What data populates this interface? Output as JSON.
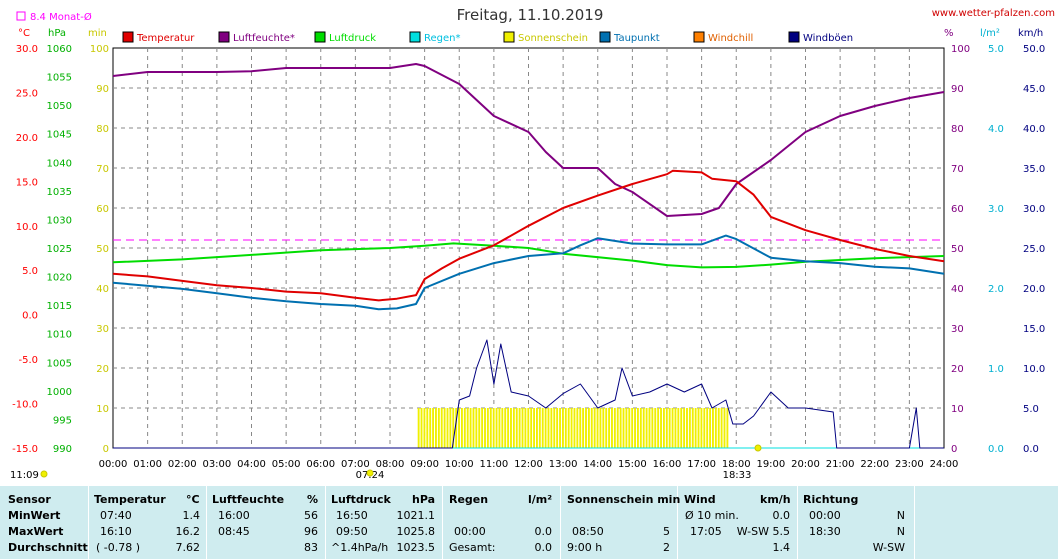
{
  "title": "Freitag, 11.10.2019",
  "site": "www.wetter-pfalzen.com",
  "monat_label": "8.4 Monat-Ø",
  "unit_labels": {
    "celsius": "°C",
    "hpa": "hPa",
    "min": "min",
    "percent": "%",
    "lm2": "l/m²",
    "kmh": "km/h"
  },
  "legend": [
    {
      "label": "Temperatur",
      "color": "#e00000"
    },
    {
      "label": "Luftfeuchte*",
      "color": "#800080"
    },
    {
      "label": "Luftdruck",
      "color": "#00dd00"
    },
    {
      "label": "Regen*",
      "color": "#00e0e0"
    },
    {
      "label": "Sonnenschein",
      "color": "#f0f000"
    },
    {
      "label": "Taupunkt",
      "color": "#0070b0"
    },
    {
      "label": "Windchill",
      "color": "#ff8000"
    },
    {
      "label": "Windböen",
      "color": "#000080"
    }
  ],
  "sunrise_label": "07:24",
  "sunset_label": "18:33",
  "time_stamp": "11:09",
  "chart_data": {
    "type": "line",
    "title": "Freitag, 11.10.2019",
    "x_ticks": [
      "00:00",
      "01:00",
      "02:00",
      "03:00",
      "04:00",
      "05:00",
      "06:00",
      "07:00",
      "08:00",
      "09:00",
      "10:00",
      "11:00",
      "12:00",
      "13:00",
      "14:00",
      "15:00",
      "16:00",
      "17:00",
      "18:00",
      "19:00",
      "20:00",
      "21:00",
      "22:00",
      "23:00",
      "24:00"
    ],
    "x_range_hours": [
      0,
      24
    ],
    "axes": {
      "temperature_c": {
        "range": [
          -15,
          30
        ],
        "ticks": [
          "30.0",
          "25.0",
          "20.0",
          "15.0",
          "10.0",
          "5.0",
          "0.0",
          "-5.0",
          "-10.0",
          "-15.0"
        ]
      },
      "pressure_hpa": {
        "range": [
          990,
          1060
        ],
        "ticks": [
          "1060",
          "1055",
          "1050",
          "1045",
          "1040",
          "1035",
          "1030",
          "1025",
          "1020",
          "1015",
          "1010",
          "1005",
          "1000",
          "995",
          "990"
        ]
      },
      "sunshine_min": {
        "range": [
          0,
          100
        ],
        "ticks": [
          "100",
          "90",
          "80",
          "70",
          "60",
          "50",
          "40",
          "30",
          "20",
          "10",
          "0"
        ]
      },
      "humidity_percent": {
        "range": [
          0,
          100
        ],
        "ticks": [
          "100",
          "90",
          "80",
          "70",
          "60",
          "50",
          "40",
          "30",
          "20",
          "10",
          "0"
        ]
      },
      "rain_lm2": {
        "range": [
          0,
          5
        ],
        "ticks": [
          "5.0",
          "4.0",
          "3.0",
          "2.0",
          "1.0",
          "0.0"
        ]
      },
      "wind_kmh": {
        "range": [
          0,
          50
        ],
        "ticks": [
          "50.0",
          "45.0",
          "40.0",
          "35.0",
          "30.0",
          "25.0",
          "20.0",
          "15.0",
          "10.0",
          "5.0",
          "0.0"
        ]
      }
    },
    "monthly_avg_temp": 8.4,
    "grid": true,
    "series": [
      {
        "name": "Temperatur",
        "axis": "temperature_c",
        "color": "#e00000",
        "points": [
          [
            0,
            4.6
          ],
          [
            1,
            4.3
          ],
          [
            2,
            3.8
          ],
          [
            3,
            3.3
          ],
          [
            4,
            3.0
          ],
          [
            5,
            2.6
          ],
          [
            6,
            2.4
          ],
          [
            7,
            1.9
          ],
          [
            7.67,
            1.6
          ],
          [
            8.2,
            1.8
          ],
          [
            8.75,
            2.2
          ],
          [
            9,
            4.0
          ],
          [
            9.5,
            5.2
          ],
          [
            10,
            6.3
          ],
          [
            11,
            7.8
          ],
          [
            12,
            10.0
          ],
          [
            13,
            12.0
          ],
          [
            14,
            13.4
          ],
          [
            15,
            14.7
          ],
          [
            16,
            15.8
          ],
          [
            16.17,
            16.2
          ],
          [
            17,
            16.0
          ],
          [
            17.3,
            15.3
          ],
          [
            18,
            15.0
          ],
          [
            18.5,
            13.5
          ],
          [
            19,
            11.0
          ],
          [
            20,
            9.5
          ],
          [
            21,
            8.4
          ],
          [
            22,
            7.4
          ],
          [
            23,
            6.6
          ],
          [
            24,
            6.0
          ]
        ]
      },
      {
        "name": "Luftfeuchte*",
        "axis": "humidity_percent",
        "color": "#800080",
        "points": [
          [
            0,
            93
          ],
          [
            1,
            94
          ],
          [
            2,
            94
          ],
          [
            3,
            94
          ],
          [
            4,
            94.2
          ],
          [
            5,
            95
          ],
          [
            6,
            95
          ],
          [
            7,
            95
          ],
          [
            8,
            95
          ],
          [
            8.75,
            96
          ],
          [
            9,
            95.5
          ],
          [
            10,
            91
          ],
          [
            11,
            83
          ],
          [
            12,
            79
          ],
          [
            12.5,
            74
          ],
          [
            13,
            70
          ],
          [
            14,
            70
          ],
          [
            14.5,
            66
          ],
          [
            15,
            64
          ],
          [
            16,
            58
          ],
          [
            17,
            58.5
          ],
          [
            17.5,
            60
          ],
          [
            18,
            66
          ],
          [
            19,
            72
          ],
          [
            20,
            79
          ],
          [
            21,
            83
          ],
          [
            22,
            85.5
          ],
          [
            23,
            87.5
          ],
          [
            24,
            89
          ]
        ]
      },
      {
        "name": "Luftdruck",
        "axis": "pressure_hpa",
        "color": "#00dd00",
        "points": [
          [
            0,
            1022.5
          ],
          [
            2,
            1023
          ],
          [
            4,
            1023.8
          ],
          [
            6,
            1024.6
          ],
          [
            8,
            1025.0
          ],
          [
            9,
            1025.4
          ],
          [
            9.83,
            1025.8
          ],
          [
            11,
            1025.4
          ],
          [
            12,
            1025
          ],
          [
            13,
            1024
          ],
          [
            15,
            1022.8
          ],
          [
            16,
            1022
          ],
          [
            17,
            1021.6
          ],
          [
            18,
            1021.7
          ],
          [
            19,
            1022.1
          ],
          [
            20,
            1022.6
          ],
          [
            21,
            1022.9
          ],
          [
            22,
            1023.2
          ],
          [
            23,
            1023.4
          ],
          [
            24,
            1023.6
          ]
        ]
      },
      {
        "name": "Taupunkt",
        "axis": "temperature_c",
        "color": "#0070b0",
        "points": [
          [
            0,
            3.6
          ],
          [
            2,
            2.9
          ],
          [
            3,
            2.4
          ],
          [
            4,
            1.9
          ],
          [
            5,
            1.5
          ],
          [
            6,
            1.2
          ],
          [
            7,
            1.0
          ],
          [
            7.67,
            0.6
          ],
          [
            8.2,
            0.7
          ],
          [
            8.75,
            1.2
          ],
          [
            9,
            3.0
          ],
          [
            10,
            4.6
          ],
          [
            11,
            5.8
          ],
          [
            12,
            6.6
          ],
          [
            13,
            6.9
          ],
          [
            13.5,
            7.8
          ],
          [
            14,
            8.6
          ],
          [
            15,
            8.0
          ],
          [
            16,
            7.9
          ],
          [
            17,
            7.9
          ],
          [
            17.7,
            8.9
          ],
          [
            18,
            8.5
          ],
          [
            19,
            6.4
          ],
          [
            20,
            6.0
          ],
          [
            21,
            5.8
          ],
          [
            22,
            5.4
          ],
          [
            23,
            5.2
          ],
          [
            24,
            4.6
          ]
        ]
      },
      {
        "name": "Windböen",
        "axis": "wind_kmh",
        "color": "#000080",
        "points": [
          [
            0,
            0
          ],
          [
            9.8,
            0
          ],
          [
            10,
            6
          ],
          [
            10.3,
            6.5
          ],
          [
            10.5,
            10
          ],
          [
            10.8,
            13.5
          ],
          [
            11,
            8
          ],
          [
            11.2,
            13
          ],
          [
            11.5,
            7
          ],
          [
            12,
            6.5
          ],
          [
            12.5,
            5
          ],
          [
            13,
            6.8
          ],
          [
            13.5,
            8
          ],
          [
            14,
            5
          ],
          [
            14.5,
            6
          ],
          [
            14.7,
            10
          ],
          [
            15,
            6.5
          ],
          [
            15.5,
            7
          ],
          [
            16,
            8
          ],
          [
            16.5,
            7
          ],
          [
            17,
            8
          ],
          [
            17.3,
            5
          ],
          [
            17.7,
            6
          ],
          [
            17.9,
            3
          ],
          [
            18.2,
            3
          ],
          [
            18.5,
            4
          ],
          [
            19,
            7
          ],
          [
            19.5,
            5
          ],
          [
            20,
            5
          ],
          [
            20.8,
            4.5
          ],
          [
            20.9,
            0
          ],
          [
            23,
            0
          ],
          [
            23.2,
            5
          ],
          [
            23.3,
            0
          ],
          [
            24,
            0
          ]
        ]
      },
      {
        "name": "Regen*",
        "axis": "rain_lm2",
        "color": "#00e0e0",
        "points": [
          [
            0,
            0
          ],
          [
            24,
            0
          ]
        ]
      }
    ],
    "sunshine_bars": {
      "axis": "sunshine_min",
      "color": "#f0f000",
      "from_hour": 8.8,
      "to_hour": 17.8,
      "value": 5
    }
  },
  "stats": {
    "headers": {
      "sensor": "Sensor",
      "temperature": "Temperatur",
      "temp_unit": "°C",
      "humidity": "Luftfeuchte",
      "hum_unit": "%",
      "pressure": "Luftdruck",
      "press_unit": "hPa",
      "rain": "Regen",
      "rain_unit": "l/m²",
      "sun": "Sonnenschein min",
      "wind": "Wind",
      "wind_unit": "km/h",
      "direction": "Richtung"
    },
    "rows": [
      {
        "label": "MinWert",
        "t_time": "07:40",
        "t_val": "1.4",
        "h_time": "16:00",
        "h_val": "56",
        "p_time": "16:50",
        "p_val": "1021.1",
        "r_time": "",
        "r_val": "",
        "s_time": "",
        "s_val": "",
        "w_time": "Ø 10 min.",
        "w_val": "0.0",
        "d_time": "00:00",
        "d_val": "N"
      },
      {
        "label": "MaxWert",
        "t_time": "16:10",
        "t_val": "16.2",
        "h_time": "08:45",
        "h_val": "96",
        "p_time": "09:50",
        "p_val": "1025.8",
        "r_time": "00:00",
        "r_val": "0.0",
        "s_time": "08:50",
        "s_val": "5",
        "w_time": "17:05",
        "w_val": "W-SW 5.5",
        "d_time": "18:30",
        "d_val": "N"
      },
      {
        "label": "Durchschnitt",
        "t_time": "( -0.78 )",
        "t_val": "7.62",
        "h_time": "",
        "h_val": "83",
        "p_time": "^1.4hPa/h",
        "p_val": "1023.5",
        "r_time": "Gesamt:",
        "r_val": "0.0",
        "s_time": "9:00 h",
        "s_val": "2",
        "w_time": "",
        "w_val": "1.4",
        "d_time": "",
        "d_val": "W-SW"
      }
    ]
  }
}
